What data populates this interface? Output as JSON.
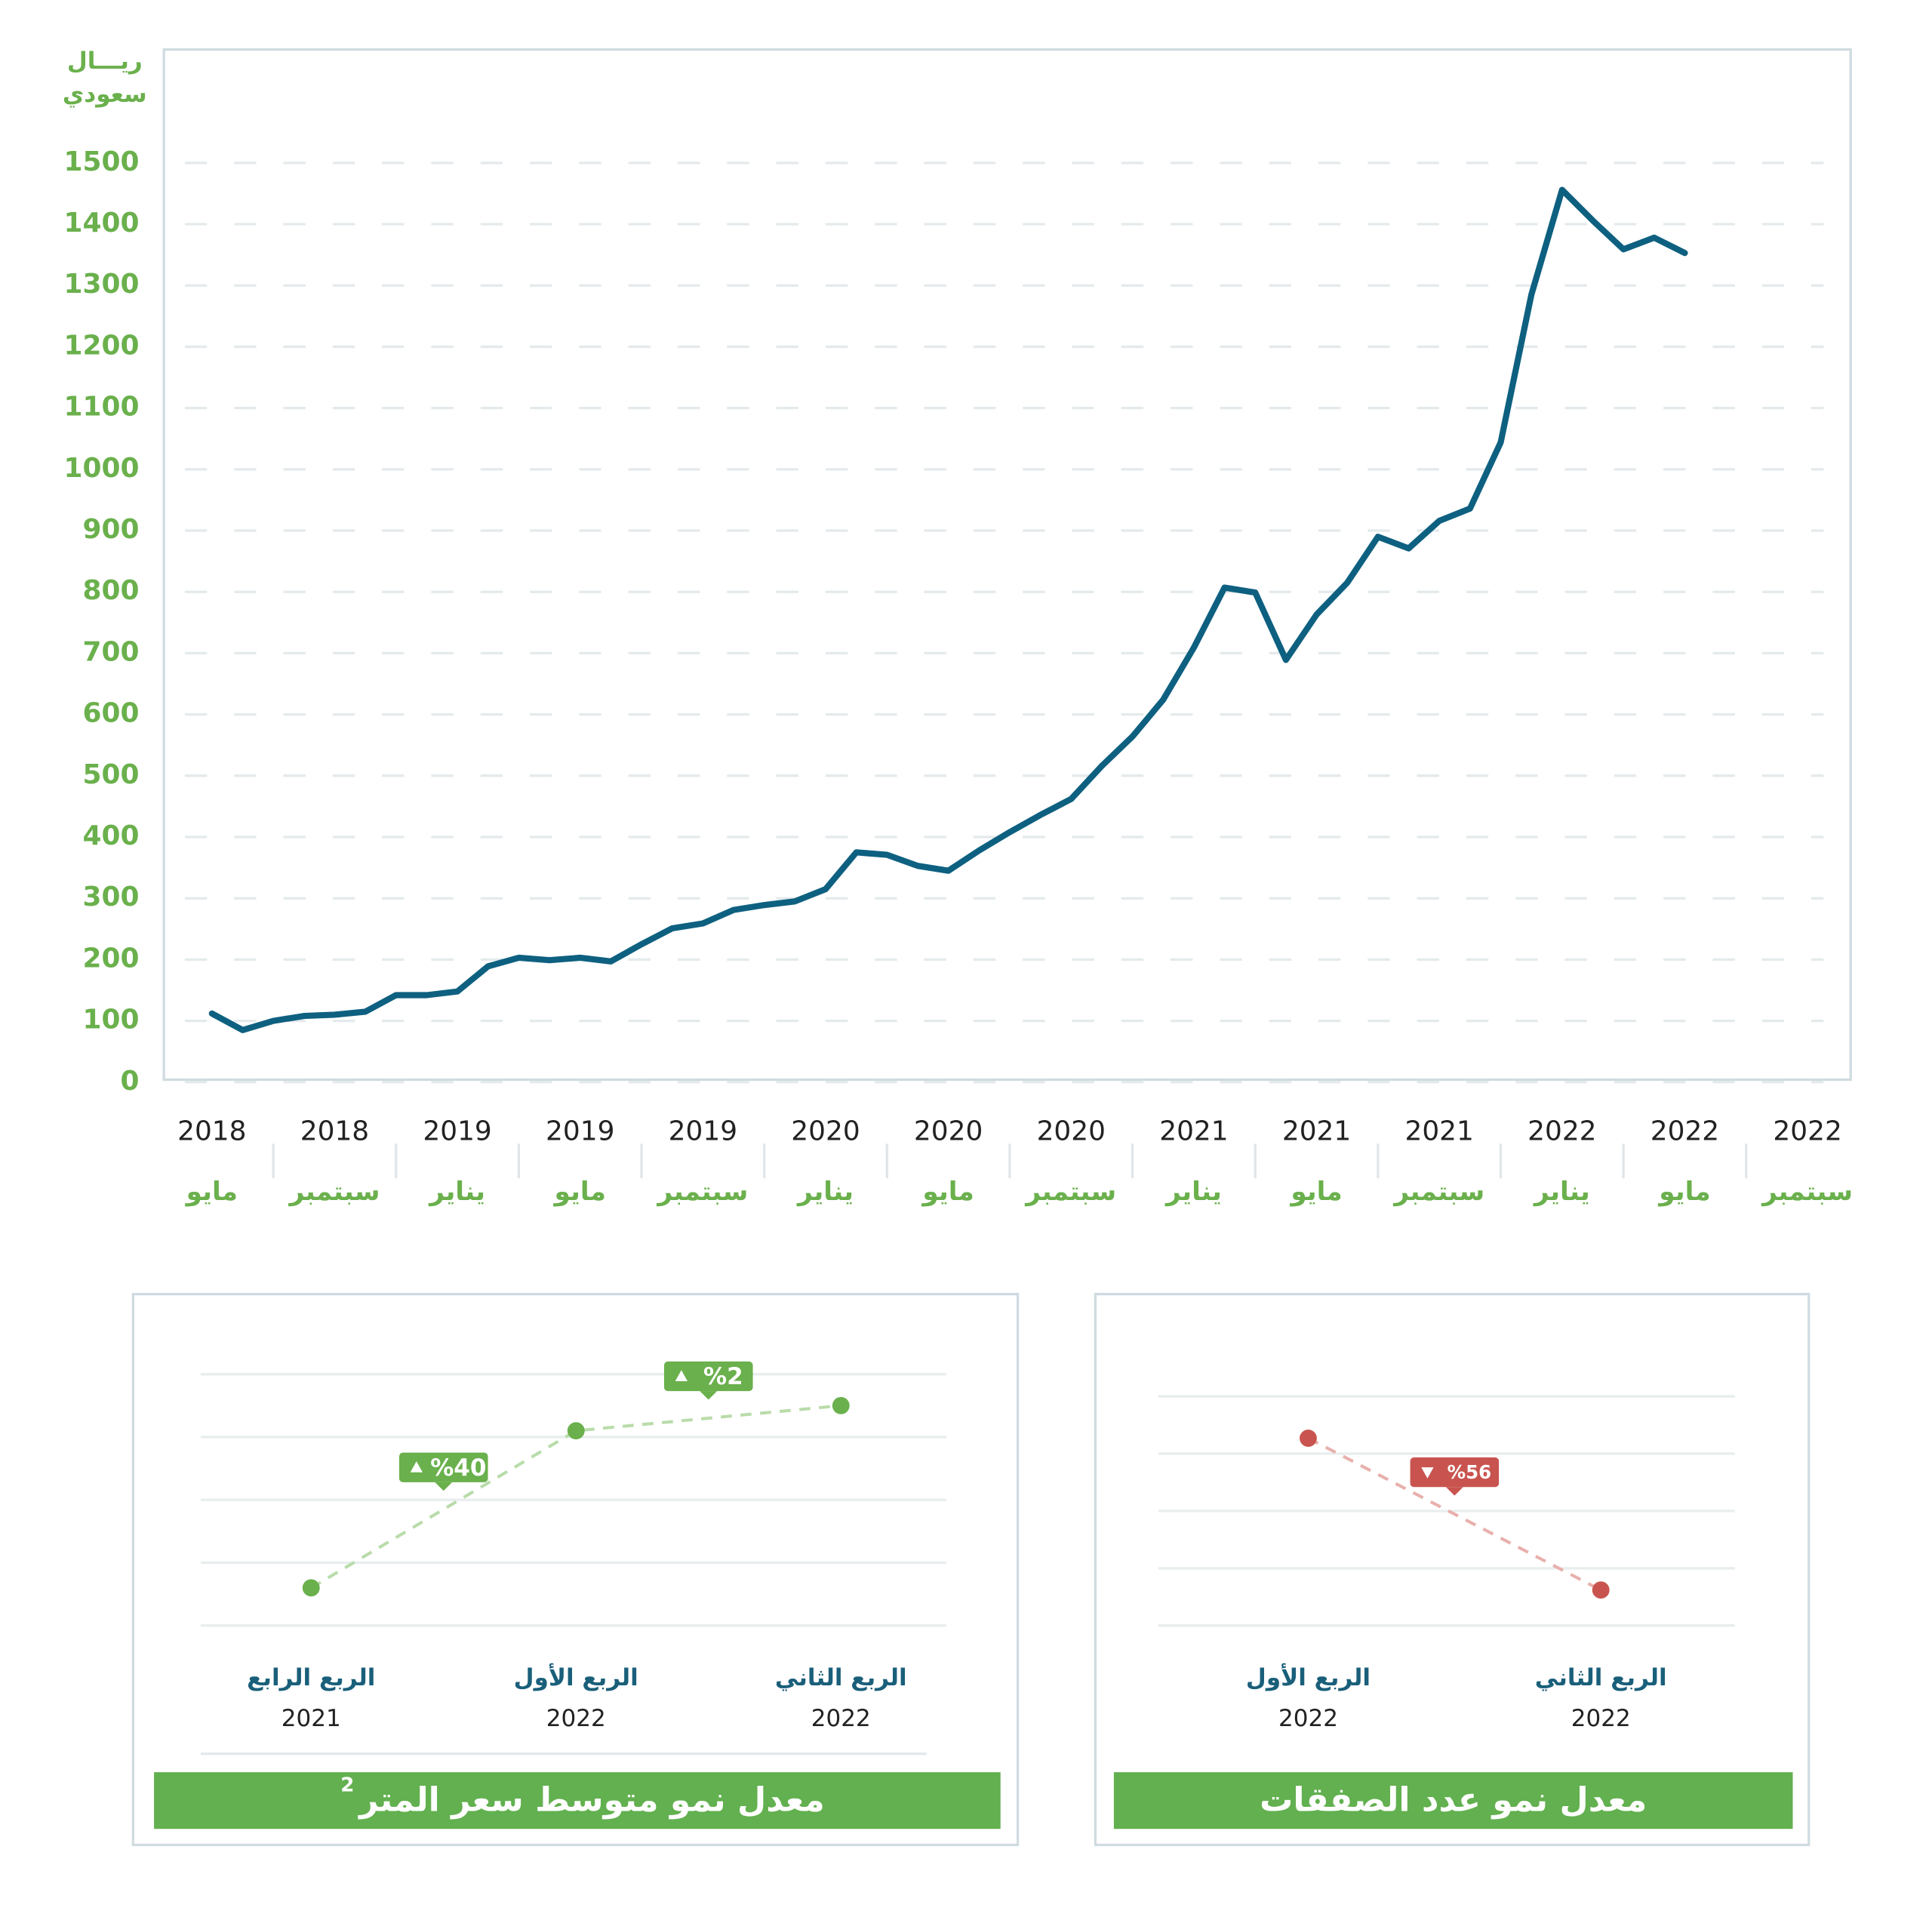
{
  "chart_data": [
    {
      "type": "line",
      "ylabel_lines": [
        "ريـــال",
        "سعودي"
      ],
      "color": "#0e6080",
      "ylim": [
        0,
        1685
      ],
      "yticks": [
        0,
        100,
        200,
        300,
        400,
        500,
        600,
        700,
        800,
        900,
        1000,
        1100,
        1200,
        1300,
        1400,
        1500
      ],
      "grid": true,
      "categories": [
        "مايو",
        null,
        null,
        null,
        "سبتمبر",
        null,
        null,
        null,
        "يناير",
        null,
        null,
        null,
        "مايو",
        null,
        null,
        null,
        "سبتمبر",
        null,
        null,
        null,
        "يناير",
        null,
        null,
        null,
        "مايو",
        null,
        null,
        null,
        "سبتمبر",
        null,
        null,
        null,
        "يناير",
        null,
        null,
        null,
        "مايو",
        null,
        null,
        null,
        "سبتمبر",
        null,
        null,
        null,
        "يناير",
        null,
        null,
        null,
        "مايو",
        null,
        null,
        null,
        "سبتمبر"
      ],
      "category_years": [
        "2018",
        null,
        null,
        null,
        "2018",
        null,
        null,
        null,
        "2019",
        null,
        null,
        null,
        "2019",
        null,
        null,
        null,
        "2019",
        null,
        null,
        null,
        "2020",
        null,
        null,
        null,
        "2020",
        null,
        null,
        null,
        "2020",
        null,
        null,
        null,
        "2021",
        null,
        null,
        null,
        "2021",
        null,
        null,
        null,
        "2021",
        null,
        null,
        null,
        "2022",
        null,
        null,
        null,
        "2022",
        null,
        null,
        null,
        "2022"
      ],
      "values": [
        112,
        85,
        100,
        108,
        110,
        115,
        142,
        142,
        148,
        189,
        203,
        199,
        203,
        197,
        225,
        251,
        259,
        281,
        289,
        295,
        315,
        375,
        371,
        353,
        345,
        378,
        408,
        436,
        462,
        516,
        564,
        624,
        709,
        807,
        799,
        689,
        763,
        815,
        890,
        871,
        916,
        936,
        1044,
        1285,
        1456,
        1406,
        1359,
        1378,
        1353,
        null,
        null,
        null,
        null
      ]
    },
    {
      "type": "line",
      "title": "معدل نمو متوسط سعر المتر",
      "title_superscript": "2",
      "categories": [
        "الربع الرابع",
        "الربع الأول",
        "الربع الثاني"
      ],
      "category_years": [
        "2021",
        "2022",
        "2022"
      ],
      "values": [
        0.6,
        3.1,
        3.5
      ],
      "ylim": [
        0,
        4
      ],
      "color": "#6ab04c",
      "line_color": "#b9dcaa",
      "annotations": [
        {
          "label": "%40",
          "direction": "up"
        },
        {
          "label": "%2",
          "direction": "up"
        }
      ]
    },
    {
      "type": "line",
      "title": "معدل نمو عدد الصفقات",
      "categories": [
        "الربع الأول",
        "الربع الثاني"
      ],
      "category_years": [
        "2022",
        "2022"
      ],
      "values": [
        3.27,
        0.62
      ],
      "ylim": [
        0,
        4
      ],
      "color": "#c9544f",
      "line_color": "#e8b0ac",
      "annotations": [
        {
          "label": "%56",
          "direction": "down"
        }
      ]
    }
  ]
}
